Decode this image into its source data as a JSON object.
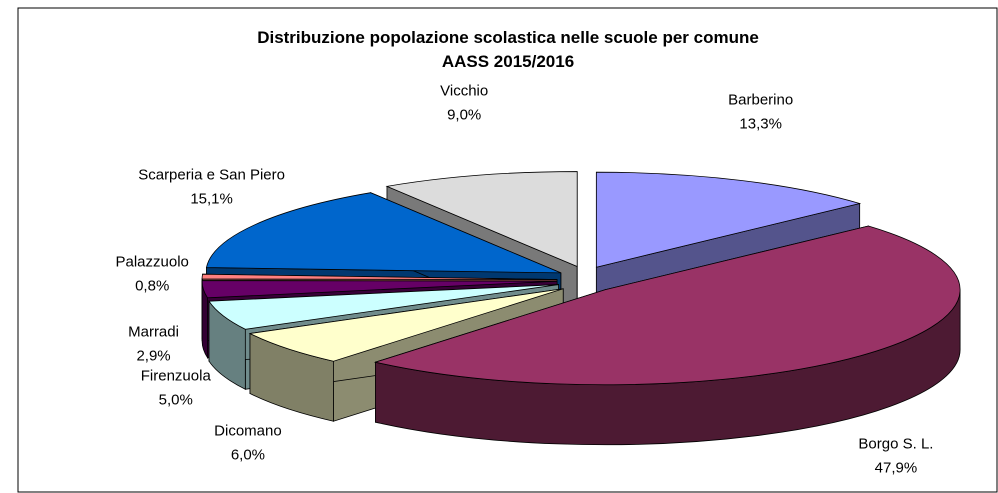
{
  "chart_data": {
    "type": "pie3d",
    "title": "Distribuzione popolazione scolastica nelle scuole per comune",
    "subtitle": "AASS 2015/2016",
    "categories": [
      "Barberino",
      "Borgo S. L.",
      "Dicomano",
      "Firenzuola",
      "Marradi",
      "Palazzuolo",
      "Scarperia e San Piero",
      "Vicchio"
    ],
    "values": [
      13.3,
      47.9,
      6.0,
      5.0,
      2.9,
      0.8,
      15.1,
      9.0
    ],
    "value_labels": [
      "13,3%",
      "47,9%",
      "6,0%",
      "5,0%",
      "2,9%",
      "0,8%",
      "15,1%",
      "9,0%"
    ],
    "colors": [
      "#9999ff",
      "#993366",
      "#ffffcc",
      "#ccffff",
      "#660066",
      "#ff8080",
      "#0066cc",
      "#dcdcdc"
    ]
  }
}
